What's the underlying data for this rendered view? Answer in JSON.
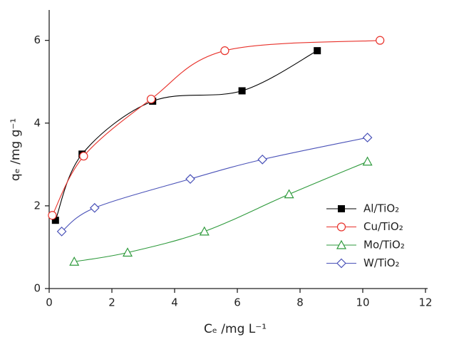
{
  "chart_data": {
    "type": "line",
    "x_label": "Cₑ /mg L⁻¹",
    "y_label": "qₑ /mg g⁻¹",
    "xlim": [
      0,
      12
    ],
    "xticks": [
      0,
      2,
      4,
      6,
      8,
      10,
      12
    ],
    "ylim": [
      0,
      6.7
    ],
    "yticks": [
      0,
      2,
      4,
      6
    ],
    "legend": "right",
    "smooth": true,
    "series": [
      {
        "name": "Al/TiO₂",
        "color": "#000000",
        "marker": "square",
        "x": [
          0.2,
          1.05,
          3.3,
          6.15,
          8.55
        ],
        "values": [
          1.65,
          3.25,
          4.53,
          4.78,
          5.75
        ]
      },
      {
        "name": "Cu/TiO₂",
        "color": "#e8312a",
        "marker": "circle",
        "x": [
          0.1,
          1.1,
          3.25,
          5.6,
          10.55
        ],
        "values": [
          1.77,
          3.2,
          4.58,
          5.75,
          6.0
        ]
      },
      {
        "name": "Mo/TiO₂",
        "color": "#2e9a3c",
        "marker": "triangle",
        "x": [
          0.8,
          2.5,
          4.95,
          7.65,
          10.15
        ],
        "values": [
          0.65,
          0.87,
          1.38,
          2.28,
          3.07
        ]
      },
      {
        "name": "W/TiO₂",
        "color": "#4a52b8",
        "marker": "diamond",
        "x": [
          0.4,
          1.45,
          4.5,
          6.8,
          10.15
        ],
        "values": [
          1.38,
          1.95,
          2.65,
          3.12,
          3.65
        ]
      }
    ]
  }
}
